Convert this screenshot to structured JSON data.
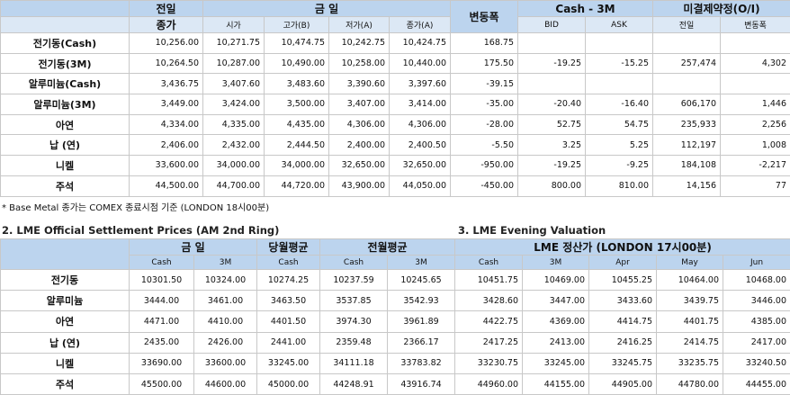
{
  "table1": {
    "header_top": [
      "전일",
      "금 일",
      "변동폭",
      "Cash - 3M",
      "미결제약정(O/I)"
    ],
    "header_sub": [
      "종가",
      "시가",
      "고가(B)",
      "저가(A)",
      "종가(A)",
      "BID",
      "ASK",
      "전일",
      "변동폭"
    ],
    "rows": [
      [
        "전기동(Cash)",
        "10,256.00",
        "10,271.75",
        "10,474.75",
        "10,242.75",
        "10,424.75",
        "168.75",
        null,
        null,
        null,
        null
      ],
      [
        "전기동(3M)",
        "10,264.50",
        "10,287.00",
        "10,490.00",
        "10,258.00",
        "10,440.00",
        "175.50",
        "-19.25",
        "-15.25",
        "257,474",
        "4,302"
      ],
      [
        "알루미늄(Cash)",
        "3,436.75",
        "3,407.60",
        "3,483.60",
        "3,390.60",
        "3,397.60",
        "-39.15",
        null,
        null,
        null,
        null
      ],
      [
        "알루미늄(3M)",
        "3,449.00",
        "3,424.00",
        "3,500.00",
        "3,407.00",
        "3,414.00",
        "-35.00",
        "-20.40",
        "-16.40",
        "606,170",
        "1,446"
      ],
      [
        "아연",
        "4,334.00",
        "4,335.00",
        "4,435.00",
        "4,306.00",
        "4,306.00",
        "-28.00",
        "52.75",
        "54.75",
        "235,933",
        "2,256"
      ],
      [
        "납 (연)",
        "2,406.00",
        "2,432.00",
        "2,444.50",
        "2,400.00",
        "2,400.50",
        "-5.50",
        "3.25",
        "5.25",
        "112,197",
        "1,008"
      ],
      [
        "니켈",
        "33,600.00",
        "34,000.00",
        "34,000.00",
        "32,650.00",
        "32,650.00",
        "-950.00",
        "-19.25",
        "-9.25",
        "184,108",
        "-2,217"
      ],
      [
        "주석",
        "44,500.00",
        "44,700.00",
        "44,720.00",
        "43,900.00",
        "44,050.00",
        "-450.00",
        "800.00",
        "810.00",
        "14,156",
        "77"
      ]
    ]
  },
  "note": "* Base Metal 종가는 COMEX 종료시점 기준 (LONDON 18시00분)",
  "table2": {
    "title": "2. LME Official Settlement Prices (AM 2nd Ring)",
    "header_top": [
      "금 일",
      "당월평균",
      "전월평균"
    ],
    "header_sub": [
      "Cash",
      "3M",
      "Cash",
      "Cash",
      "3M"
    ],
    "rows": [
      [
        "전기동",
        "10301.50",
        "10324.00",
        "10274.25",
        "10237.59",
        "10245.65"
      ],
      [
        "알루미늄",
        "3444.00",
        "3461.00",
        "3463.50",
        "3537.85",
        "3542.93"
      ],
      [
        "아연",
        "4471.00",
        "4410.00",
        "4401.50",
        "3974.30",
        "3961.89"
      ],
      [
        "납 (연)",
        "2435.00",
        "2426.00",
        "2441.00",
        "2359.48",
        "2366.17"
      ],
      [
        "니켈",
        "33690.00",
        "33600.00",
        "33245.00",
        "34111.18",
        "33783.82"
      ],
      [
        "주석",
        "45500.00",
        "44600.00",
        "45000.00",
        "44248.91",
        "43916.74"
      ]
    ]
  },
  "table3": {
    "title": "3. LME Evening Valuation",
    "header_top": "LME 정산가 (LONDON 17시00분)",
    "header_sub": [
      "Cash",
      "3M",
      "Apr",
      "May",
      "Jun"
    ],
    "rows": [
      [
        "10451.75",
        "10469.00",
        "10455.25",
        "10464.00",
        "10468.00"
      ],
      [
        "3428.60",
        "3447.00",
        "3433.60",
        "3439.75",
        "3446.00"
      ],
      [
        "4422.75",
        "4369.00",
        "4414.75",
        "4401.75",
        "4385.00"
      ],
      [
        "2417.25",
        "2413.00",
        "2416.25",
        "2414.75",
        "2417.00"
      ],
      [
        "33230.75",
        "33245.00",
        "33245.75",
        "33235.75",
        "33240.50"
      ],
      [
        "44960.00",
        "44155.00",
        "44905.00",
        "44780.00",
        "44455.00"
      ]
    ]
  }
}
